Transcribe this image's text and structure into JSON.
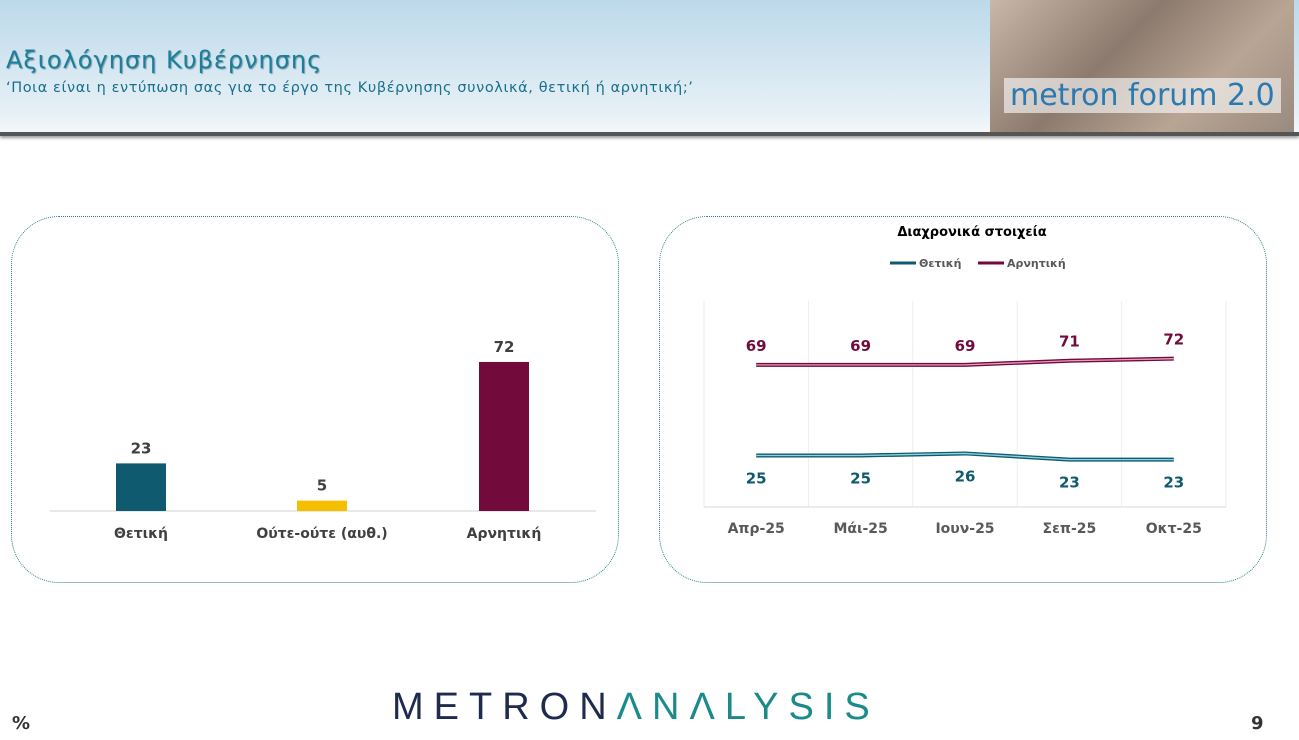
{
  "header": {
    "title": "Αξιολόγηση Κυβέρνησης",
    "subtitle": "‘Ποια είναι η εντύπωση σας για το έργο της Κυβέρνησης συνολικά, θετική ή αρνητική;’",
    "logo_text": "metron forum 2.0"
  },
  "footer": {
    "brand_a": "METRON",
    "brand_b": "ΛNΛLYSIS",
    "unit": "%",
    "page": "9"
  },
  "chart_data": [
    {
      "type": "bar",
      "categories": [
        "Θετική",
        "Ούτε-ούτε (αυθ.)",
        "Αρνητική"
      ],
      "values": [
        23,
        5,
        72
      ],
      "colors": [
        "#0f5a6e",
        "#f5bf00",
        "#730a3c"
      ],
      "ylim": [
        0,
        100
      ]
    },
    {
      "type": "line",
      "title": "Διαχρονικά στοιχεία",
      "categories": [
        "Απρ-25",
        "Μάι-25",
        "Ιουν-25",
        "Σεπ-25",
        "Οκτ-25"
      ],
      "series": [
        {
          "name": "Θετική",
          "values": [
            25,
            25,
            26,
            23,
            23
          ],
          "color": "#0f5a6e"
        },
        {
          "name": "Αρνητική",
          "values": [
            69,
            69,
            69,
            71,
            72
          ],
          "color": "#730a3c"
        }
      ],
      "ylim": [
        0,
        100
      ],
      "grid": "vertical",
      "legend": "top"
    }
  ]
}
